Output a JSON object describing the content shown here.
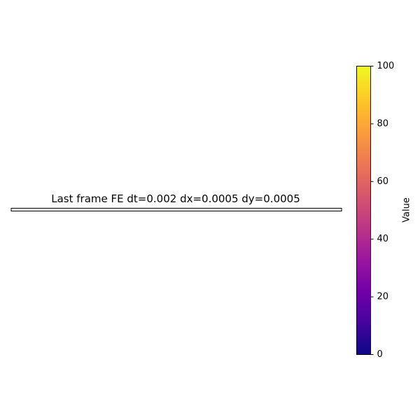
{
  "chart_data": {
    "type": "heatmap",
    "title": "Last frame FE dt=0.002 dx=0.0005 dy=0.0005",
    "xlabel": "",
    "ylabel": "",
    "grid": false,
    "colormap": "plasma",
    "colormap_stops": [
      "#0d0887",
      "#46039f",
      "#7201a8",
      "#9c179e",
      "#bd3786",
      "#d8576b",
      "#ed7953",
      "#fb9f3a",
      "#fdca26",
      "#f0f921"
    ],
    "colorbar": {
      "label": "Value",
      "range": [
        0,
        100
      ],
      "ticks": [
        0,
        20,
        40,
        60,
        80,
        100
      ],
      "tick_labels": [
        "0",
        "20",
        "40",
        "60",
        "80",
        "100"
      ]
    },
    "image_color": "#ffffff"
  }
}
